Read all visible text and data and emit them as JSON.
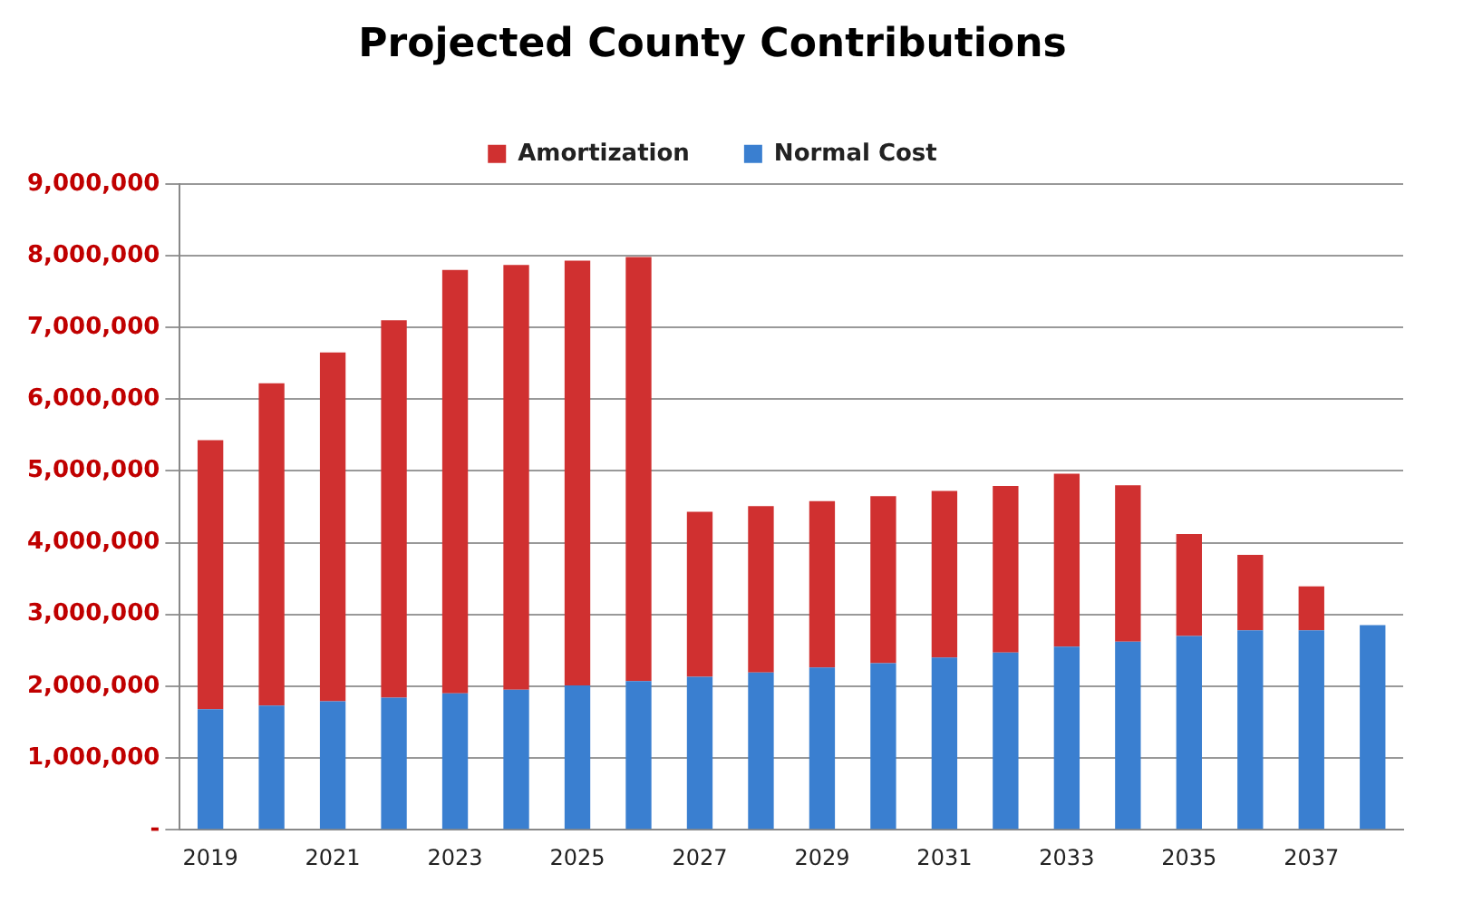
{
  "chart_data": {
    "type": "bar",
    "title": "Projected County Contributions",
    "categories": [
      "2019",
      null,
      "2021",
      null,
      "2023",
      null,
      "2025",
      null,
      "2027",
      null,
      "2029",
      null,
      "2031",
      null,
      "2033",
      null,
      "2035",
      null,
      "2037",
      null
    ],
    "stacked": true,
    "series": [
      {
        "name": "Normal Cost",
        "color": "#3a7fd0",
        "values": [
          1680000,
          1730000,
          1790000,
          1840000,
          1900000,
          1950000,
          2010000,
          2070000,
          2130000,
          2190000,
          2260000,
          2320000,
          2400000,
          2470000,
          2550000,
          2620000,
          2700000,
          2780000,
          2780000,
          2850000
        ]
      },
      {
        "name": "Amortization",
        "color": "#d03030",
        "values": [
          3750000,
          4490000,
          4860000,
          5260000,
          5900000,
          5920000,
          5920000,
          5910000,
          2300000,
          2320000,
          2320000,
          2330000,
          2320000,
          2320000,
          2410000,
          2180000,
          1420000,
          1050000,
          610000,
          0
        ]
      }
    ],
    "ylim": [
      0,
      9000000
    ],
    "yticks": [
      {
        "value": 0,
        "label": "-"
      },
      {
        "value": 1000000,
        "label": "1,000,000"
      },
      {
        "value": 2000000,
        "label": "2,000,000"
      },
      {
        "value": 3000000,
        "label": "3,000,000"
      },
      {
        "value": 4000000,
        "label": "4,000,000"
      },
      {
        "value": 5000000,
        "label": "5,000,000"
      },
      {
        "value": 6000000,
        "label": "6,000,000"
      },
      {
        "value": 7000000,
        "label": "7,000,000"
      },
      {
        "value": 8000000,
        "label": "8,000,000"
      },
      {
        "value": 9000000,
        "label": "9,000,000"
      }
    ],
    "grid": "y",
    "legend": "top"
  }
}
